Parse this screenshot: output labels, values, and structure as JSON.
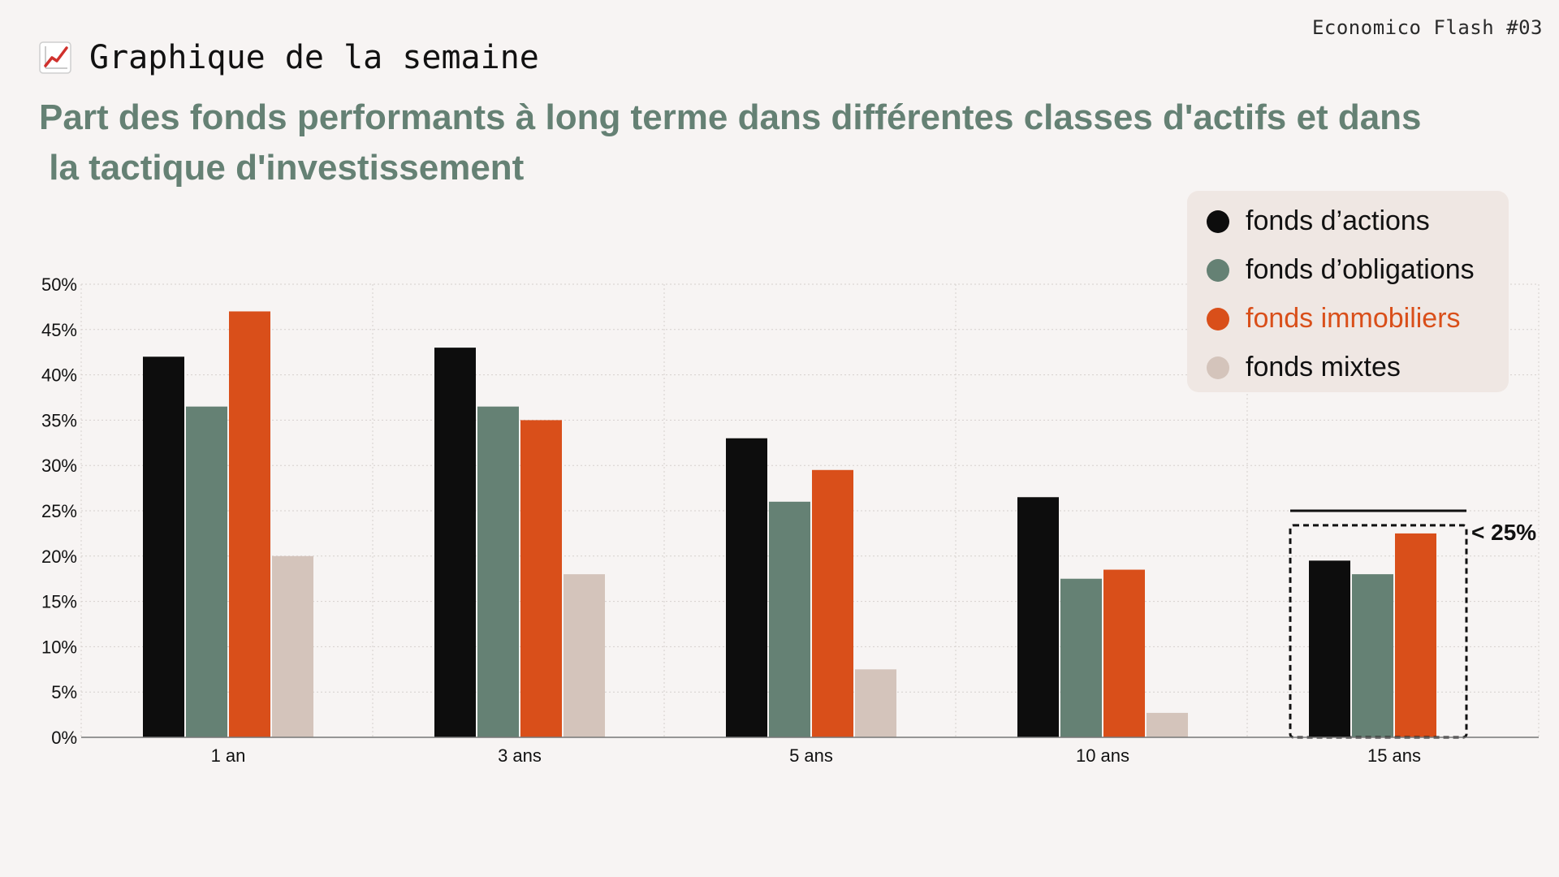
{
  "brand": "Economico Flash #03",
  "header": {
    "title": "Graphique de la semaine",
    "icon": "chart-increasing-icon"
  },
  "subtitle": {
    "line1": "Part des fonds performants à long terme dans différentes classes d'actifs et dans",
    "line2": " la tactique d'investissement"
  },
  "colors": {
    "actions": "#0d0d0d",
    "obligations": "#658174",
    "immobiliers": "#d94f1a",
    "mixtes": "#d4c4bb",
    "legend_bg": "#efe7e3"
  },
  "chart_data": {
    "type": "bar",
    "title": "",
    "xlabel": "",
    "ylabel": "",
    "categories": [
      "1 an",
      "3 ans",
      "5 ans",
      "10 ans",
      "15 ans"
    ],
    "series": [
      {
        "name": "fonds d’actions",
        "color": "#0d0d0d",
        "values": [
          42,
          43,
          33,
          26.5,
          19.5
        ]
      },
      {
        "name": "fonds d’obligations",
        "color": "#658174",
        "values": [
          36.5,
          36.5,
          26,
          17.5,
          18
        ]
      },
      {
        "name": "fonds immobiliers",
        "color": "#d94f1a",
        "values": [
          47,
          35,
          29.5,
          18.5,
          22.5
        ]
      },
      {
        "name": "fonds mixtes",
        "color": "#d4c4bb",
        "values": [
          20,
          18,
          7.5,
          2.7,
          null
        ]
      }
    ],
    "ylim": [
      0,
      50
    ],
    "yticks": [
      "0%",
      "5%",
      "10%",
      "15%",
      "20%",
      "25%",
      "30%",
      "35%",
      "40%",
      "45%",
      "50%"
    ],
    "grid": true,
    "legend_position": "top-right",
    "annotation": {
      "category": "15 ans",
      "text": "< 25%",
      "threshold": 25
    }
  }
}
